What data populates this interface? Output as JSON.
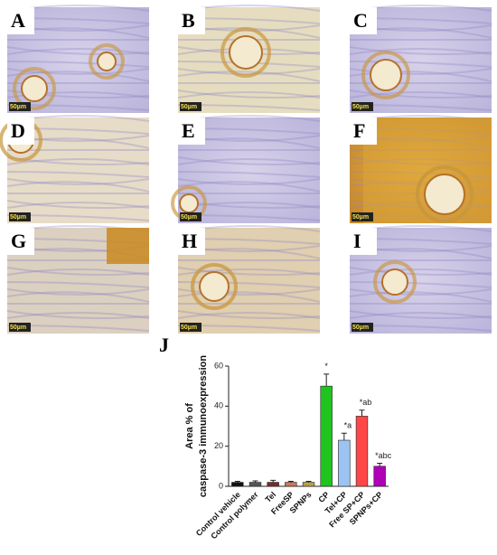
{
  "panels": [
    {
      "label": "A",
      "scale": "50µm"
    },
    {
      "label": "B",
      "scale": "50µm"
    },
    {
      "label": "C",
      "scale": "50µm"
    },
    {
      "label": "D",
      "scale": "50µm"
    },
    {
      "label": "E",
      "scale": "50µm"
    },
    {
      "label": "F",
      "scale": "50µm"
    },
    {
      "label": "G",
      "scale": "50µm"
    },
    {
      "label": "H",
      "scale": "50µm"
    },
    {
      "label": "I",
      "scale": "50µm"
    }
  ],
  "chart_label": "J",
  "chart_data": {
    "type": "bar",
    "ylabel": [
      "Area % of",
      "caspase-3 immunoexpression"
    ],
    "categories": [
      "Control vehicle",
      "Control polymer",
      "Tel",
      "FreeSP",
      "SPNPs",
      "CP",
      "Tel+CP",
      "Free SP+CP",
      "SPNPs+CP"
    ],
    "values": [
      2,
      2,
      2,
      2,
      2,
      50,
      23,
      35,
      10
    ],
    "errors": [
      0.5,
      0.7,
      1,
      0.5,
      0.5,
      6,
      3.5,
      3,
      1.5
    ],
    "colors": [
      "#111111",
      "#555555",
      "#7a2a2a",
      "#d0745a",
      "#b8a23a",
      "#1fc41f",
      "#9cc4f2",
      "#ff4747",
      "#b000b8"
    ],
    "value_annotations": [
      null,
      null,
      null,
      null,
      null,
      "*",
      "*a",
      "*ab",
      "*abc"
    ],
    "ylim": [
      0,
      60
    ],
    "yticks": [
      0,
      20,
      40,
      60
    ]
  }
}
